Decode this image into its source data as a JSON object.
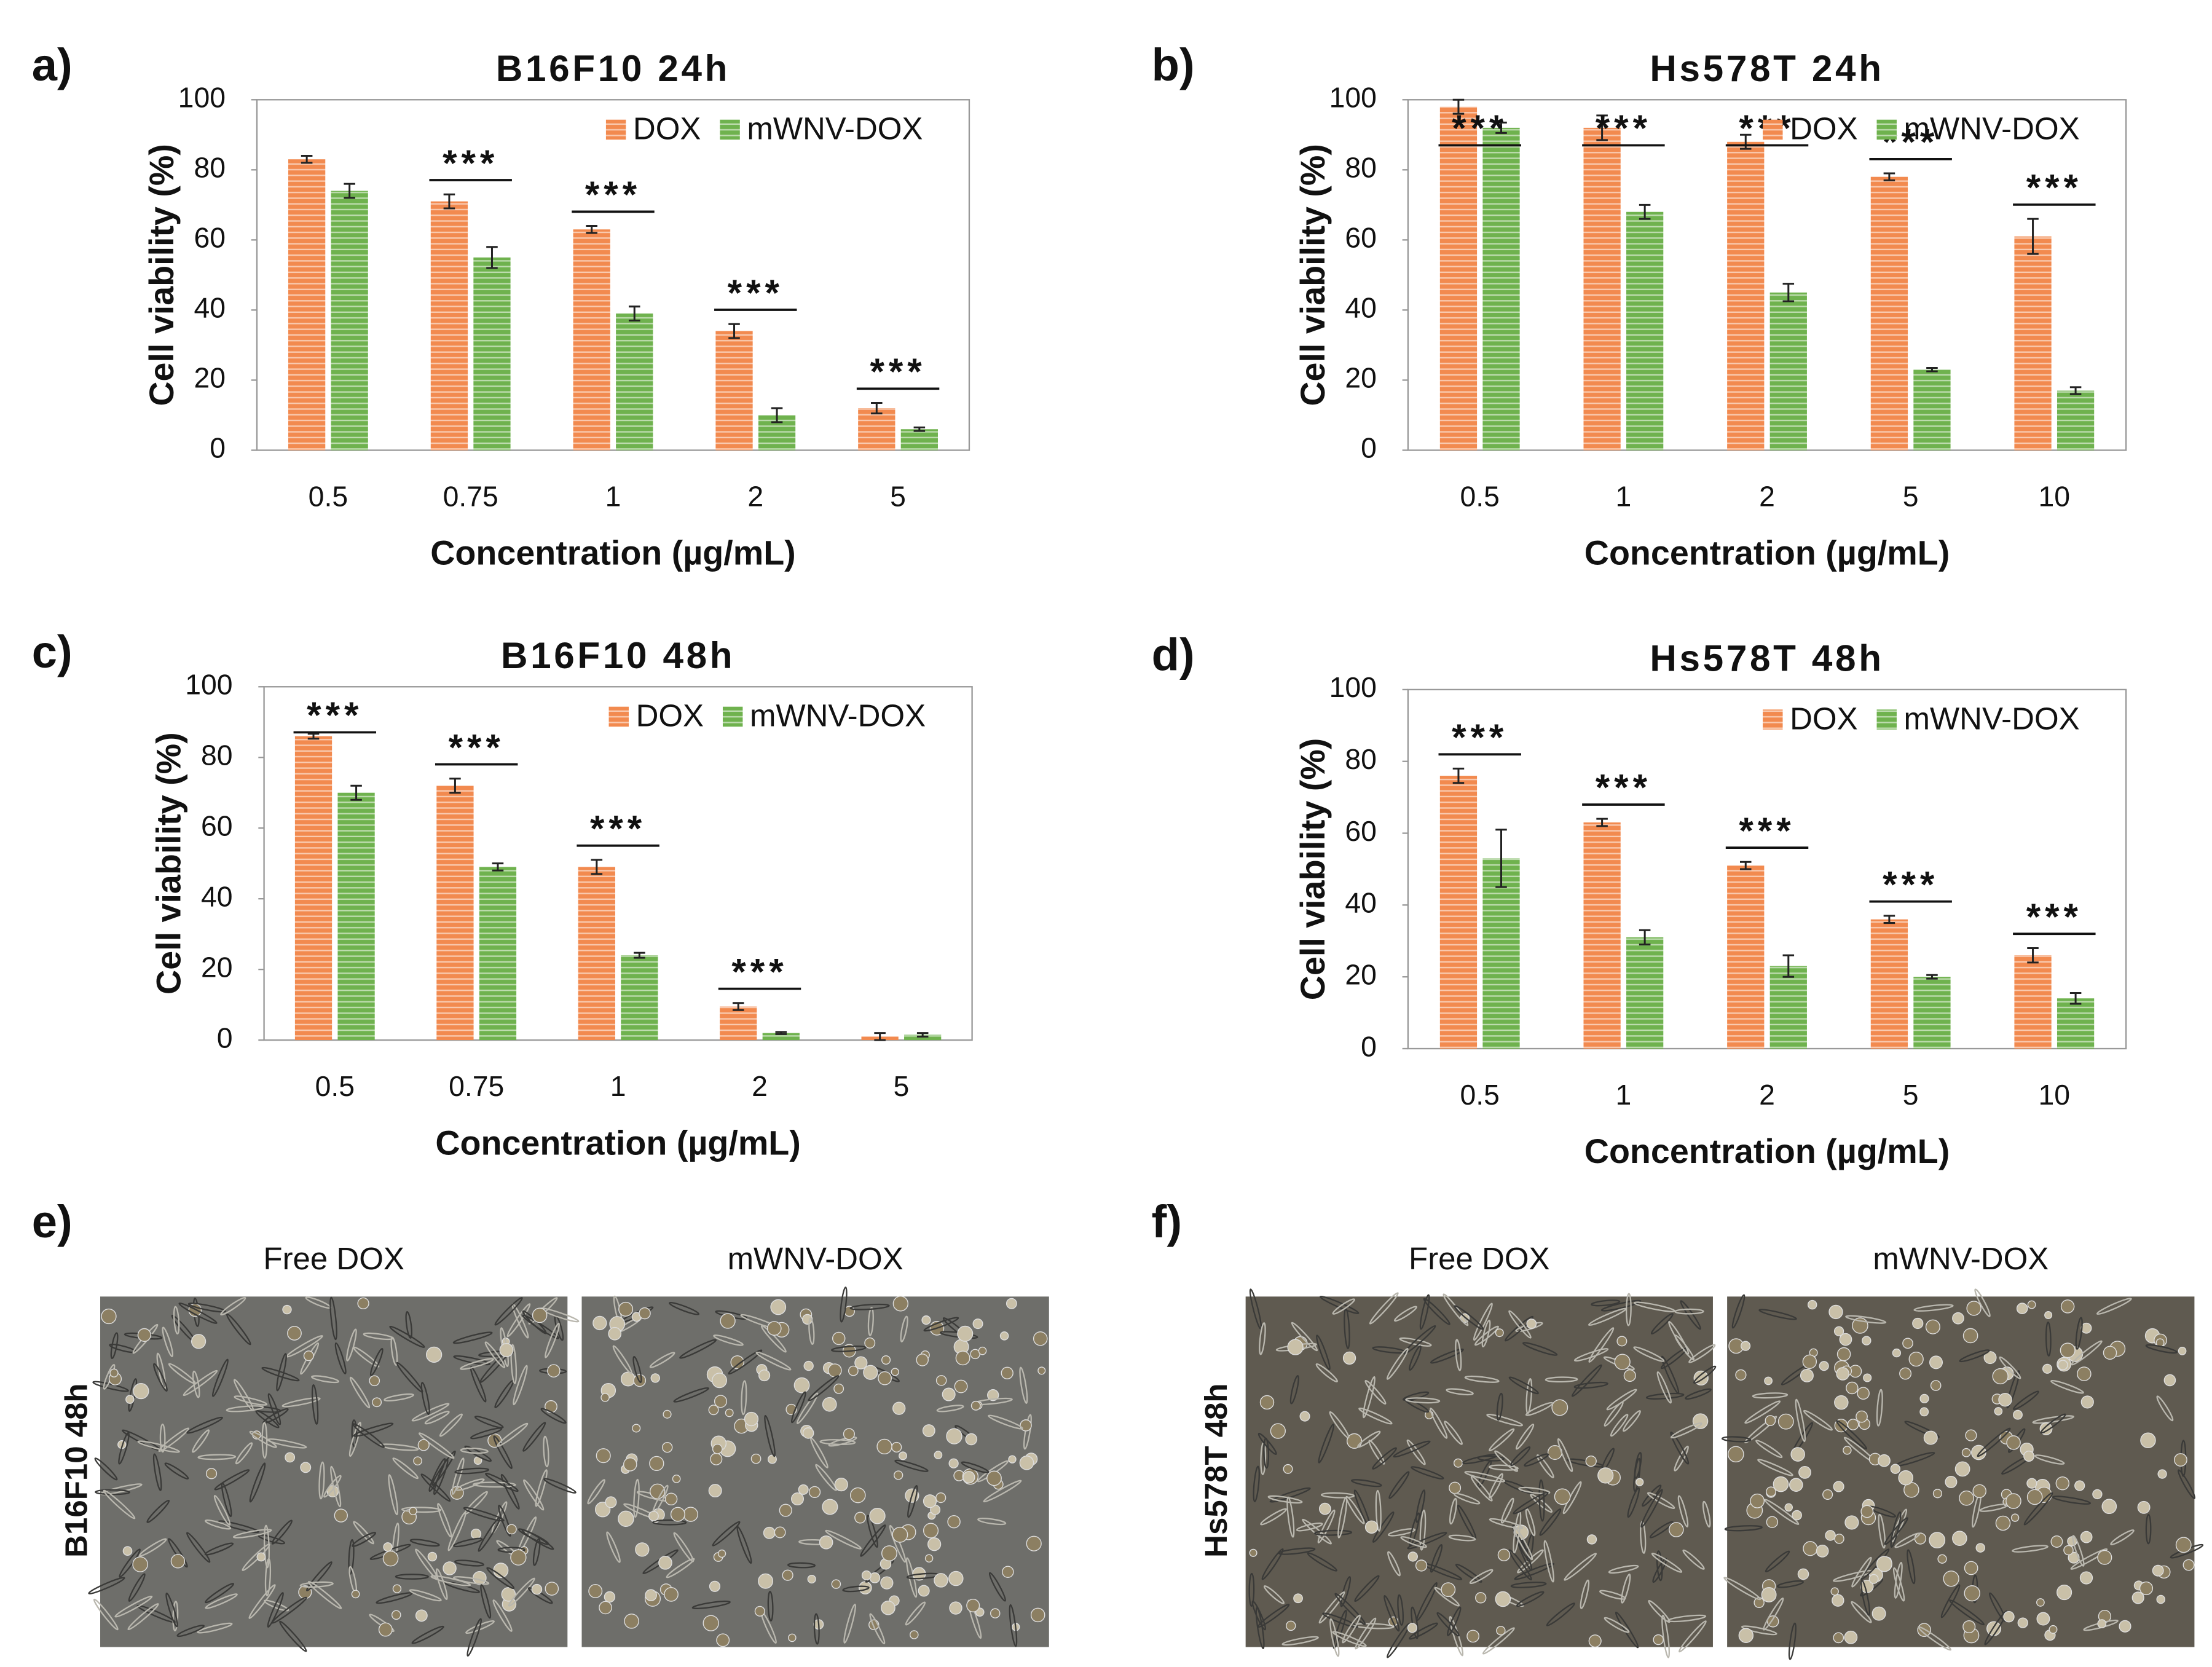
{
  "chart_data": [
    {
      "type": "bar",
      "panel_label": "a)",
      "title": "B16F10 24h",
      "x_label": "Concentration (µg/mL)",
      "y_label": "Cell viability (%)",
      "categories": [
        "0.5",
        "0.75",
        "1",
        "2",
        "5"
      ],
      "series": [
        {
          "name": "DOX",
          "color": "#f28a4f",
          "values": [
            83,
            71,
            63,
            34,
            12
          ],
          "errors": [
            1,
            2,
            1,
            2,
            1.5
          ]
        },
        {
          "name": "mWNV-DOX",
          "color": "#6fb24e",
          "values": [
            74,
            55,
            39,
            10,
            6
          ],
          "errors": [
            2,
            3,
            2,
            2,
            0.5
          ]
        }
      ],
      "significance": [
        null,
        "***",
        "***",
        "***",
        "***"
      ],
      "ylim": [
        0,
        100
      ],
      "yticks": [
        0,
        20,
        40,
        60,
        80,
        100
      ],
      "grid": false,
      "legend": "top-right"
    },
    {
      "type": "bar",
      "panel_label": "b)",
      "title": "Hs578T 24h",
      "x_label": "Concentration (µg/mL)",
      "y_label": "Cell viability (%)",
      "categories": [
        "0.5",
        "1",
        "2",
        "5",
        "10"
      ],
      "series": [
        {
          "name": "DOX",
          "color": "#f28a4f",
          "values": [
            98,
            92,
            88,
            78,
            61
          ],
          "errors": [
            2,
            3.5,
            2,
            1,
            5
          ]
        },
        {
          "name": "mWNV-DOX",
          "color": "#6fb24e",
          "values": [
            92,
            68,
            45,
            23,
            17
          ],
          "errors": [
            1.5,
            2,
            2.5,
            0.5,
            1
          ]
        }
      ],
      "significance": [
        "***",
        "***",
        "***",
        "***",
        "***"
      ],
      "ylim": [
        0,
        100
      ],
      "yticks": [
        0,
        20,
        40,
        60,
        80,
        100
      ],
      "grid": false,
      "legend": "top-right"
    },
    {
      "type": "bar",
      "panel_label": "c)",
      "title": "B16F10 48h",
      "x_label": "Concentration (µg/mL)",
      "y_label": "Cell viability (%)",
      "categories": [
        "0.5",
        "0.75",
        "1",
        "2",
        "5"
      ],
      "series": [
        {
          "name": "DOX",
          "color": "#f28a4f",
          "values": [
            86,
            72,
            49,
            9.5,
            1
          ],
          "errors": [
            0.7,
            2,
            2,
            1,
            1
          ]
        },
        {
          "name": "mWNV-DOX",
          "color": "#6fb24e",
          "values": [
            70,
            49,
            24,
            2,
            1.5
          ],
          "errors": [
            2,
            1,
            0.7,
            0.3,
            0.5
          ]
        }
      ],
      "significance": [
        "***",
        "***",
        "***",
        "***",
        null
      ],
      "ylim": [
        0,
        100
      ],
      "yticks": [
        0,
        20,
        40,
        60,
        80,
        100
      ],
      "grid": false,
      "legend": "top-right"
    },
    {
      "type": "bar",
      "panel_label": "d)",
      "title": "Hs578T 48h",
      "x_label": "Concentration (µg/mL)",
      "y_label": "Cell viability (%)",
      "categories": [
        "0.5",
        "1",
        "2",
        "5",
        "10"
      ],
      "series": [
        {
          "name": "DOX",
          "color": "#f28a4f",
          "values": [
            76,
            63,
            51,
            36,
            26
          ],
          "errors": [
            2,
            1,
            1,
            1,
            2
          ]
        },
        {
          "name": "mWNV-DOX",
          "color": "#6fb24e",
          "values": [
            53,
            31,
            23,
            20,
            14
          ],
          "errors": [
            8,
            2,
            3,
            0.5,
            1.5
          ]
        }
      ],
      "significance": [
        "***",
        "***",
        "***",
        "***",
        "***"
      ],
      "ylim": [
        0,
        100
      ],
      "yticks": [
        0,
        20,
        40,
        60,
        80,
        100
      ],
      "grid": false,
      "legend": "top-right"
    }
  ],
  "micrographs": [
    {
      "panel_label": "e)",
      "row_label": "B16F10 48h",
      "columns": [
        "Free DOX",
        "mWNV-DOX"
      ]
    },
    {
      "panel_label": "f)",
      "row_label": "Hs578T 48h",
      "columns": [
        "Free DOX",
        "mWNV-DOX"
      ]
    }
  ]
}
